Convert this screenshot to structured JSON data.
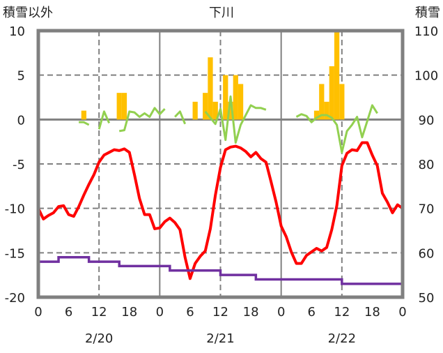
{
  "chart_data": {
    "type": "bar+line",
    "title": "下川",
    "ylabel_left": "積雪以外",
    "ylabel_right": "積雪",
    "ylim_left": [
      -20,
      10
    ],
    "ylim_right": [
      50,
      110
    ],
    "yticks_left": [
      "10",
      "5",
      "0",
      "-5",
      "-10",
      "-15",
      "-20"
    ],
    "yticks_right": [
      "110",
      "100",
      "90",
      "80",
      "70",
      "60",
      "50"
    ],
    "xticks": [
      "0",
      "6",
      "12",
      "18",
      "0",
      "6",
      "12",
      "18",
      "0",
      "6",
      "12",
      "18",
      "0"
    ],
    "day_labels": [
      "2/20",
      "2/21",
      "2/22"
    ],
    "x_unit": "hours from 2/20 0:00",
    "grid": true,
    "colors": {
      "precip": "#FFC000",
      "wind_line": "#92D050",
      "temp": "#FF0000",
      "snow_depth": "#7030A0",
      "grid": "#808080"
    },
    "bars": {
      "axis": "left",
      "hours": [
        9,
        16,
        17,
        31,
        33,
        34,
        35,
        37,
        38,
        39,
        40,
        55,
        56,
        57,
        58,
        59,
        60
      ],
      "values": [
        1,
        3,
        3,
        2,
        3,
        7,
        2,
        5,
        2,
        5,
        4,
        1,
        4,
        2,
        6,
        10,
        4
      ]
    },
    "green_line": {
      "axis": "left",
      "segments": [
        {
          "hours": [
            8,
            9,
            10
          ],
          "values": [
            -0.3,
            -0.3,
            -0.6
          ]
        },
        {
          "hours": [
            12,
            13,
            14
          ],
          "values": [
            -1.1,
            0.9,
            -0.4
          ]
        },
        {
          "hours": [
            16,
            17,
            18,
            19,
            20,
            21,
            22,
            23,
            24,
            25
          ],
          "values": [
            -1.3,
            -1.2,
            0.9,
            0.8,
            0.3,
            0.7,
            0.3,
            1.3,
            0.6,
            1.2
          ]
        },
        {
          "hours": [
            27,
            28,
            29
          ],
          "values": [
            0.3,
            0.9,
            -0.5
          ]
        },
        {
          "hours": [
            33,
            34,
            35,
            36,
            37,
            38,
            39,
            40,
            41,
            42,
            43,
            44,
            45
          ],
          "values": [
            0.9,
            0.2,
            -0.5,
            1.2,
            -2.3,
            2.6,
            -2.6,
            -0.6,
            0.5,
            1.6,
            1.3,
            1.3,
            1.1
          ]
        },
        {
          "hours": [
            51,
            52,
            53,
            54,
            55,
            56,
            57,
            58,
            59,
            60,
            61,
            62,
            63,
            64,
            65,
            66,
            67
          ],
          "values": [
            0.3,
            0.6,
            0.4,
            -0.3,
            0.2,
            0.5,
            0.5,
            0.2,
            -0.6,
            -3.7,
            -1.3,
            -0.6,
            0.3,
            -2.0,
            -0.2,
            1.6,
            0.7
          ]
        }
      ]
    },
    "temperature": {
      "axis": "left",
      "values": [
        -10,
        -11.2,
        -10.8,
        -10.5,
        -9.8,
        -9.7,
        -10.7,
        -10.9,
        -9.8,
        -8.5,
        -7.3,
        -6.2,
        -4.8,
        -4,
        -3.7,
        -3.4,
        -3.5,
        -3.3,
        -3.7,
        -6.2,
        -8.9,
        -10.7,
        -10.7,
        -12.3,
        -12.2,
        -11.5,
        -11.1,
        -11.6,
        -12.4,
        -15.5,
        -17.9,
        -16.2,
        -15.4,
        -14.8,
        -12.3,
        -8.5,
        -5.4,
        -3.4,
        -3.1,
        -3,
        -3.2,
        -3.6,
        -4.2,
        -3.7,
        -4.4,
        -4.8,
        -7,
        -9.3,
        -12,
        -13.2,
        -14.9,
        -16.2,
        -16.2,
        -15.3,
        -14.9,
        -14.5,
        -14.8,
        -14.4,
        -12.4,
        -9.7,
        -5.2,
        -3.8,
        -3.4,
        -3.5,
        -2.6,
        -2.6,
        -4,
        -5.2,
        -8.3,
        -9.3,
        -10.5,
        -9.6,
        -10
      ]
    },
    "snow_depth": {
      "axis": "right",
      "steps": [
        {
          "from": 0,
          "to": 4,
          "value": 58
        },
        {
          "from": 4,
          "to": 10,
          "value": 59
        },
        {
          "from": 10,
          "to": 16,
          "value": 58
        },
        {
          "from": 16,
          "to": 26,
          "value": 57
        },
        {
          "from": 26,
          "to": 36,
          "value": 56
        },
        {
          "from": 36,
          "to": 43,
          "value": 55
        },
        {
          "from": 43,
          "to": 60,
          "value": 54
        },
        {
          "from": 60,
          "to": 72,
          "value": 53
        }
      ]
    }
  }
}
